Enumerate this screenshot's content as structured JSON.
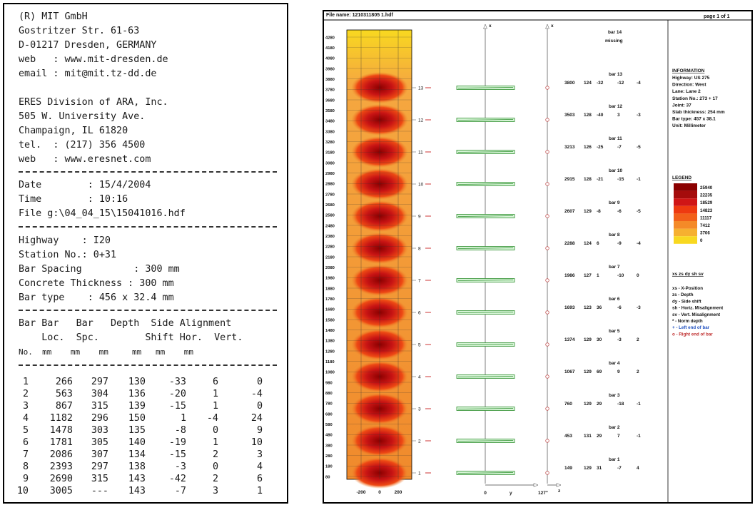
{
  "left": {
    "company": [
      "(R) MIT GmbH",
      "Gostritzer Str. 61-63",
      "D-01217 Dresden, GERMANY",
      "web   : www.mit-dresden.de",
      "email : mit@mit.tz-dd.de"
    ],
    "division": [
      "ERES Division of ARA, Inc.",
      "505 W. University Ave.",
      "Champaign, IL 61820",
      "tel.  : (217) 356 4500",
      "web   : www.eresnet.com"
    ],
    "run": [
      "Date        : 15/4/2004",
      "Time        : 10:16",
      "File g:\\04_04_15\\15041016.hdf"
    ],
    "specs": [
      "Highway    : I20",
      "Station No.: 0+31",
      "Bar Spacing         : 300 mm",
      "Concrete Thickness : 300 mm",
      "Bar type    : 456 x 32.4 mm"
    ],
    "header": [
      "Bar Bar   Bar   Depth  Side Alignment",
      "    Loc.  Spc.        Shift Hor.  Vert.",
      "No.  mm    mm    mm     mm   mm    mm"
    ],
    "rows": [
      [
        "1",
        "266",
        "297",
        "130",
        "-33",
        "6",
        "0"
      ],
      [
        "2",
        "563",
        "304",
        "136",
        "-20",
        "1",
        "-4"
      ],
      [
        "3",
        "867",
        "315",
        "139",
        "-15",
        "1",
        "0"
      ],
      [
        "4",
        "1182",
        "296",
        "150",
        "1",
        "-4",
        "24"
      ],
      [
        "5",
        "1478",
        "303",
        "135",
        "-8",
        "0",
        "9"
      ],
      [
        "6",
        "1781",
        "305",
        "140",
        "-19",
        "1",
        "10"
      ],
      [
        "7",
        "2086",
        "307",
        "134",
        "-15",
        "2",
        "3"
      ],
      [
        "8",
        "2393",
        "297",
        "138",
        "-3",
        "0",
        "4"
      ],
      [
        "9",
        "2690",
        "315",
        "143",
        "-42",
        "2",
        "6"
      ],
      [
        "10",
        "3005",
        "---",
        "143",
        "-7",
        "3",
        "1"
      ]
    ]
  },
  "right": {
    "file_name": "File name: 1210311805 1.hdf",
    "page": "page 1 of 1",
    "y_ticks": [
      "4280",
      "4180",
      "4080",
      "3980",
      "3880",
      "3780",
      "3680",
      "3580",
      "3480",
      "3380",
      "3280",
      "3180",
      "3080",
      "2980",
      "2880",
      "2780",
      "2680",
      "2580",
      "2480",
      "2380",
      "2280",
      "2180",
      "2080",
      "1980",
      "1880",
      "1780",
      "1680",
      "1580",
      "1480",
      "1380",
      "1280",
      "1180",
      "1080",
      "980",
      "880",
      "780",
      "680",
      "580",
      "480",
      "380",
      "280",
      "180",
      "80"
    ],
    "x_ticks": [
      "-200",
      "0",
      "200"
    ],
    "axis_x_label": "x",
    "axis_y_label": "y",
    "axis_y_zero": "0",
    "axis_z_label": "z",
    "axis_z_value": "127\"",
    "bar_missing": [
      "bar 14",
      "missing"
    ],
    "bars": [
      {
        "label": "bar 13",
        "pos": "3800",
        "depth": "124",
        "dy": "-32",
        "sh": "-12",
        "sv": "-4"
      },
      {
        "label": "bar 12",
        "pos": "3503",
        "depth": "128",
        "dy": "-40",
        "sh": "3",
        "sv": "-3"
      },
      {
        "label": "bar 11",
        "pos": "3213",
        "depth": "126",
        "dy": "-25",
        "sh": "-7",
        "sv": "-5"
      },
      {
        "label": "bar 10",
        "pos": "2915",
        "depth": "128",
        "dy": "-21",
        "sh": "-15",
        "sv": "-1"
      },
      {
        "label": "bar 9",
        "pos": "2607",
        "depth": "129",
        "dy": "-8",
        "sh": "-6",
        "sv": "-5"
      },
      {
        "label": "bar 8",
        "pos": "2288",
        "depth": "124",
        "dy": "6",
        "sh": "-9",
        "sv": "-4"
      },
      {
        "label": "bar 7",
        "pos": "1986",
        "depth": "127",
        "dy": "1",
        "sh": "-10",
        "sv": "0"
      },
      {
        "label": "bar 6",
        "pos": "1693",
        "depth": "123",
        "dy": "36",
        "sh": "-6",
        "sv": "-3"
      },
      {
        "label": "bar 5",
        "pos": "1374",
        "depth": "129",
        "dy": "30",
        "sh": "-3",
        "sv": "2"
      },
      {
        "label": "bar 4",
        "pos": "1067",
        "depth": "129",
        "dy": "69",
        "sh": "9",
        "sv": "2"
      },
      {
        "label": "bar 3",
        "pos": "760",
        "depth": "129",
        "dy": "29",
        "sh": "-18",
        "sv": "-1"
      },
      {
        "label": "bar 2",
        "pos": "453",
        "depth": "131",
        "dy": "29",
        "sh": "7",
        "sv": "-1"
      },
      {
        "label": "bar 1",
        "pos": "149",
        "depth": "129",
        "dy": "31",
        "sh": "-7",
        "sv": "4"
      }
    ],
    "bar_numbers": [
      "13",
      "12",
      "11",
      "10",
      "9",
      "8",
      "7",
      "6",
      "5",
      "4",
      "3",
      "2",
      "1"
    ],
    "information": {
      "title": "INFORMATION",
      "lines": [
        "Highway: US 275",
        "Direction: West",
        "Lane: Lane 2",
        "Station No.: 273  + 17",
        "Joint: 37",
        "Slab thickness: 254 mm",
        "Bar type: 457 x 38.1",
        "Unit: Millimeter"
      ]
    },
    "legend": {
      "title": "LEGEND",
      "values": [
        "25940",
        "22235",
        "18529",
        "14823",
        "11117",
        "7412",
        "3706",
        "0"
      ],
      "colors": [
        "#8b0000",
        "#a50c0c",
        "#d01616",
        "#ee3a10",
        "#f2601a",
        "#f48a28",
        "#f6b030",
        "#f8d820"
      ]
    },
    "abbrev": {
      "title": "xs  zs  dy  sh  sv",
      "lines": [
        "xs - X-Position",
        "zs - Depth",
        "dy - Side shift",
        "sh - Horiz. Misalignment",
        "sv - Vert. Misalignment",
        "* - Norm depth",
        "+ - Left end of bar",
        "o - Right end of bar"
      ]
    },
    "colors": {
      "heat_low": "#f8d820",
      "heat_high": "#8b0000",
      "bar_green": "#2f8f2f",
      "bar_fill": "#d7f5d7",
      "tick_red": "#c00000"
    }
  }
}
